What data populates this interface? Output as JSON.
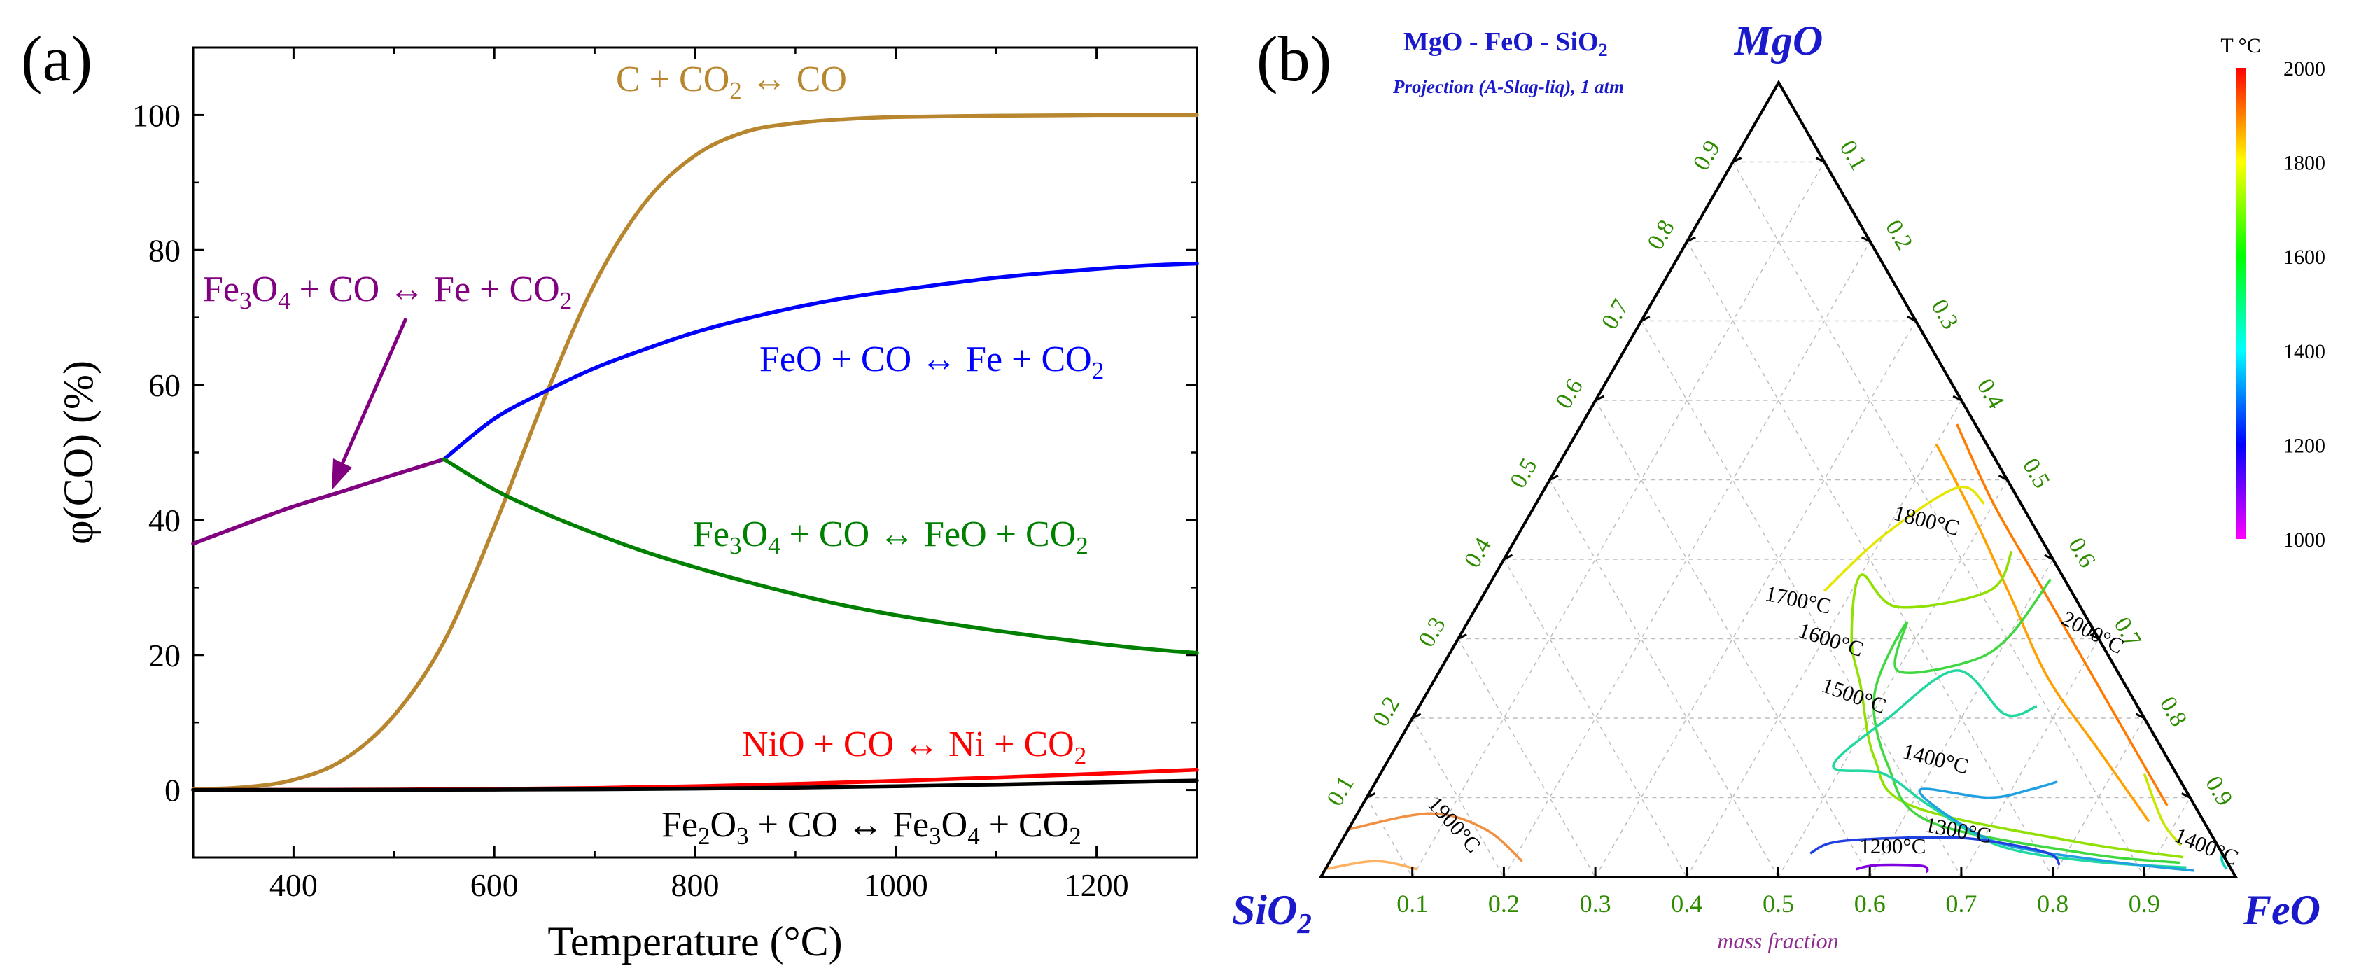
{
  "chart_data": [
    {
      "type": "line",
      "panel_label": "(a)",
      "xlabel": "Temperature (°C)",
      "ylabel": "φ(CO) (%)",
      "xlim": [
        300,
        1300
      ],
      "ylim": [
        -10,
        110
      ],
      "xticks": [
        400,
        600,
        800,
        1000,
        1200
      ],
      "yticks": [
        0,
        20,
        40,
        60,
        80,
        100
      ],
      "grid": false,
      "series": [
        {
          "name": "C + CO2 ↔ CO",
          "color": "#B8862E",
          "label_parts": [
            [
              "C + CO",
              ""
            ],
            [
              "2",
              "sub"
            ],
            [
              " ↔ CO",
              ""
            ]
          ],
          "x": [
            300,
            350,
            400,
            450,
            500,
            550,
            600,
            650,
            700,
            750,
            800,
            850,
            900,
            950,
            1000,
            1100,
            1200,
            1300
          ],
          "y": [
            0.1,
            0.4,
            1.5,
            4.5,
            11,
            22,
            39,
            58,
            75,
            87,
            94,
            97.5,
            98.8,
            99.4,
            99.7,
            99.9,
            100,
            100
          ]
        },
        {
          "name": "Fe3O4 + CO ↔ Fe + CO2",
          "color": "#800080",
          "label_parts": [
            [
              "Fe",
              ""
            ],
            [
              "3",
              "sub"
            ],
            [
              "O",
              ""
            ],
            [
              "4",
              "sub"
            ],
            [
              " + CO ↔ Fe + CO",
              ""
            ],
            [
              "2",
              "sub"
            ]
          ],
          "x": [
            300,
            350,
            400,
            450,
            500,
            550
          ],
          "y": [
            36.5,
            39.3,
            42,
            44.3,
            46.7,
            49
          ]
        },
        {
          "name": "FeO + CO ↔ Fe + CO2",
          "color": "#0000FF",
          "label_parts": [
            [
              "FeO + CO ↔ Fe + CO",
              ""
            ],
            [
              "2",
              "sub"
            ]
          ],
          "x": [
            550,
            600,
            650,
            700,
            750,
            800,
            850,
            900,
            950,
            1000,
            1050,
            1100,
            1150,
            1200,
            1250,
            1300
          ],
          "y": [
            49,
            55,
            59,
            62.5,
            65.3,
            67.8,
            69.8,
            71.5,
            72.9,
            74,
            75,
            75.9,
            76.6,
            77.2,
            77.7,
            78
          ]
        },
        {
          "name": "Fe3O4 + CO ↔ FeO + CO2",
          "color": "#008000",
          "label_parts": [
            [
              "Fe",
              ""
            ],
            [
              "3",
              "sub"
            ],
            [
              "O",
              ""
            ],
            [
              "4",
              "sub"
            ],
            [
              " + CO ↔ FeO + CO",
              ""
            ],
            [
              "2",
              "sub"
            ]
          ],
          "x": [
            550,
            600,
            650,
            700,
            750,
            800,
            850,
            900,
            950,
            1000,
            1050,
            1100,
            1150,
            1200,
            1250,
            1300
          ],
          "y": [
            49,
            44.5,
            41,
            38,
            35.3,
            33,
            30.9,
            29,
            27.3,
            25.9,
            24.7,
            23.6,
            22.6,
            21.7,
            20.9,
            20.3
          ]
        },
        {
          "name": "NiO + CO ↔ Ni + CO2",
          "color": "#FF0000",
          "label_parts": [
            [
              "NiO + CO ↔ Ni + CO",
              ""
            ],
            [
              "2",
              "sub"
            ]
          ],
          "x": [
            300,
            400,
            500,
            600,
            700,
            800,
            900,
            1000,
            1100,
            1200,
            1300
          ],
          "y": [
            0,
            0.02,
            0.06,
            0.15,
            0.3,
            0.55,
            0.9,
            1.35,
            1.85,
            2.4,
            3
          ]
        },
        {
          "name": "Fe2O3 + CO ↔ Fe3O4 + CO2",
          "color": "#000000",
          "label_parts": [
            [
              "Fe",
              ""
            ],
            [
              "2",
              "sub"
            ],
            [
              "O",
              ""
            ],
            [
              "3",
              "sub"
            ],
            [
              " + CO ↔ Fe",
              ""
            ],
            [
              "3",
              "sub"
            ],
            [
              "O",
              ""
            ],
            [
              "4",
              "sub"
            ],
            [
              " + CO",
              ""
            ],
            [
              "2",
              "sub"
            ]
          ],
          "x": [
            300,
            400,
            500,
            600,
            700,
            800,
            900,
            1000,
            1100,
            1200,
            1300
          ],
          "y": [
            0,
            0.01,
            0.02,
            0.05,
            0.1,
            0.2,
            0.35,
            0.55,
            0.8,
            1.1,
            1.4
          ]
        }
      ]
    },
    {
      "type": "ternary-contour",
      "panel_label": "(b)",
      "title_parts": [
        [
          "MgO - FeO - SiO",
          ""
        ],
        [
          "2",
          "sub"
        ]
      ],
      "subtitle": "Projection (A-Slag-liq), 1 atm",
      "apex_labels": {
        "top": "MgO",
        "left_parts": [
          [
            "SiO",
            ""
          ],
          [
            "2",
            "sub"
          ]
        ],
        "right": "FeO"
      },
      "bottom_axis_label": "mass fraction",
      "axis_ticks": [
        0.1,
        0.2,
        0.3,
        0.4,
        0.5,
        0.6,
        0.7,
        0.8,
        0.9
      ],
      "bottom_tick_labels": [
        "0.9",
        "0.8",
        "0.7",
        "0.6",
        "0.5",
        "0.4",
        "0.3",
        "0.2",
        "0.1"
      ],
      "left_tick_labels": [
        "0.1",
        "0.2",
        "0.3",
        "0.4",
        "0.5",
        "0.6",
        "0.7",
        "0.8",
        "0.9"
      ],
      "right_tick_labels": [
        "0.1",
        "0.2",
        "0.3",
        "0.4",
        "0.5",
        "0.6",
        "0.7",
        "0.8",
        "0.9"
      ],
      "colorbar": {
        "title": "T °C",
        "min": 1000,
        "max": 2000,
        "ticks": [
          "2000",
          "1800",
          "1600",
          "1400",
          "1200",
          "1000"
        ],
        "stops": [
          "#FF00FF",
          "#0000FF",
          "#00FFFF",
          "#00FF00",
          "#FFFF00",
          "#FF0000"
        ]
      },
      "contours": [
        {
          "label": "2000°C",
          "color": "#FF2020",
          "points": [
            [
              0.59,
              0.41
            ],
            [
              0.49,
              0.51
            ],
            [
              0.39,
              0.61
            ],
            [
              0.3,
              0.7
            ],
            [
              0.2,
              0.8
            ],
            [
              0.12,
              0.88
            ]
          ]
        },
        {
          "label": "",
          "color": "#FF7A00",
          "points": [
            [
              0.57,
              0.41
            ],
            [
              0.47,
              0.5
            ],
            [
              0.37,
              0.6
            ],
            [
              0.27,
              0.7
            ],
            [
              0.18,
              0.79
            ],
            [
              0.09,
              0.88
            ]
          ]
        },
        {
          "label": "",
          "color": "#FFA000",
          "points": [
            [
              0.545,
              0.4
            ],
            [
              0.45,
              0.49
            ],
            [
              0.35,
              0.58
            ],
            [
              0.25,
              0.67
            ],
            [
              0.16,
              0.77
            ],
            [
              0.07,
              0.87
            ]
          ]
        },
        {
          "label": "1800°C",
          "color": "#E6E600",
          "points": [
            [
              0.47,
              0.49
            ],
            [
              0.49,
              0.45
            ],
            [
              0.43,
              0.4
            ],
            [
              0.36,
              0.37
            ]
          ]
        },
        {
          "label": "",
          "color": "#C8E600",
          "points": [
            [
              0.13,
              0.835
            ],
            [
              0.07,
              0.885
            ],
            [
              0.04,
              0.92
            ]
          ]
        },
        {
          "label": "1700°C",
          "color": "#90E000",
          "points": [
            [
              0.41,
              0.55
            ],
            [
              0.36,
              0.55
            ],
            [
              0.34,
              0.46
            ],
            [
              0.38,
              0.4
            ],
            [
              0.3,
              0.43
            ],
            [
              0.24,
              0.47
            ],
            [
              0.15,
              0.53
            ],
            [
              0.09,
              0.6
            ],
            [
              0.045,
              0.8
            ],
            [
              0.025,
              0.93
            ]
          ]
        },
        {
          "label": "1600°C",
          "color": "#40D840",
          "points": [
            [
              0.375,
              0.61
            ],
            [
              0.3,
              0.6
            ],
            [
              0.27,
              0.57
            ],
            [
              0.26,
              0.5
            ],
            [
              0.32,
              0.48
            ],
            [
              0.23,
              0.49
            ],
            [
              0.14,
              0.55
            ],
            [
              0.07,
              0.63
            ],
            [
              0.03,
              0.82
            ],
            [
              0.018,
              0.93
            ]
          ]
        },
        {
          "label": "1500°C",
          "color": "#20D8A0",
          "points": [
            [
              0.215,
              0.675
            ],
            [
              0.205,
              0.645
            ],
            [
              0.26,
              0.565
            ],
            [
              0.2,
              0.52
            ],
            [
              0.14,
              0.49
            ],
            [
              0.13,
              0.55
            ],
            [
              0.09,
              0.62
            ],
            [
              0.04,
              0.72
            ],
            [
              0.02,
              0.83
            ],
            [
              0.012,
              0.94
            ]
          ]
        },
        {
          "label": "1400°C",
          "color": "#20A0E0",
          "points": [
            [
              0.12,
              0.745
            ],
            [
              0.11,
              0.72
            ],
            [
              0.1,
              0.68
            ],
            [
              0.11,
              0.6
            ],
            [
              0.07,
              0.66
            ],
            [
              0.04,
              0.73
            ],
            [
              0.02,
              0.85
            ],
            [
              0.008,
              0.95
            ]
          ]
        },
        {
          "label": "1300°C",
          "color": "#2040E0",
          "points": [
            [
              0.03,
              0.52
            ],
            [
              0.045,
              0.545
            ],
            [
              0.05,
              0.65
            ],
            [
              0.045,
              0.71
            ],
            [
              0.03,
              0.78
            ],
            [
              0.015,
              0.8
            ]
          ]
        },
        {
          "label": "1200°C",
          "color": "#8000E0",
          "points": [
            [
              0.01,
              0.58
            ],
            [
              0.015,
              0.6
            ],
            [
              0.014,
              0.65
            ],
            [
              0.006,
              0.66
            ]
          ]
        },
        {
          "label": "1900°C",
          "color": "#F09040",
          "points": [
            [
              0.06,
              0.0
            ],
            [
              0.08,
              0.08
            ],
            [
              0.06,
              0.15
            ],
            [
              0.02,
              0.21
            ]
          ]
        },
        {
          "label": "",
          "color": "#FFB060",
          "points": [
            [
              0.01,
              0.0
            ],
            [
              0.02,
              0.05
            ],
            [
              0.01,
              0.1
            ]
          ]
        },
        {
          "label": "1400°C",
          "color": "#00D8C0",
          "points": [
            [
              0.03,
              0.97
            ],
            [
              0.02,
              0.975
            ],
            [
              0.01,
              0.985
            ]
          ]
        }
      ],
      "contour_labels": [
        {
          "text": "2000°C",
          "color": "#000000"
        },
        {
          "text": "1800°C",
          "color": "#000000"
        },
        {
          "text": "1700°C",
          "color": "#000000"
        },
        {
          "text": "1600°C",
          "color": "#000000"
        },
        {
          "text": "1500°C",
          "color": "#000000"
        },
        {
          "text": "1400°C",
          "color": "#000000"
        },
        {
          "text": "1300°C",
          "color": "#000000"
        },
        {
          "text": "1200°C",
          "color": "#000000"
        },
        {
          "text": "1900°C",
          "color": "#000000"
        },
        {
          "text": "1400°C",
          "color": "#000000"
        }
      ]
    }
  ]
}
